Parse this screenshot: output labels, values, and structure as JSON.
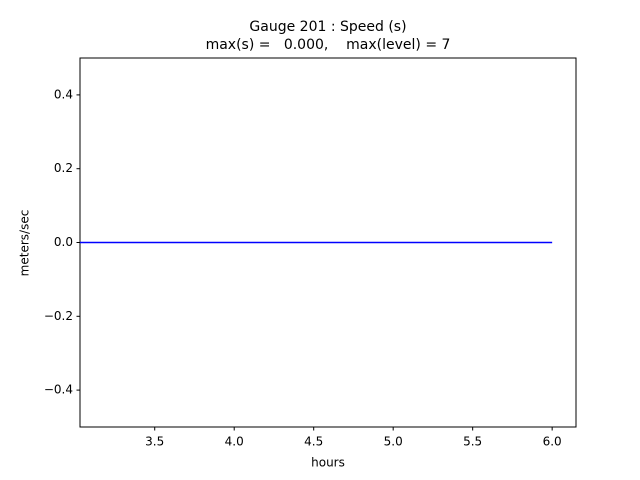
{
  "chart_data": {
    "type": "line",
    "title": "Gauge 201 : Speed (s)",
    "subtitle": "max(s) =   0.000,    max(level) = 7",
    "x_label": "hours",
    "y_label": "meters/sec",
    "x": [
      3.03,
      6.0
    ],
    "series": [
      {
        "color": "#0000ff",
        "values": [
          0,
          0
        ]
      }
    ],
    "xlim": [
      3.03,
      6.15
    ],
    "xticks": [
      3.5,
      {
        "value": 4,
        "label": "4.0"
      },
      4.5,
      {
        "value": 5,
        "label": "5.0"
      },
      5.5,
      {
        "value": 6,
        "label": "6.0"
      }
    ],
    "ylim": [
      -0.5,
      0.5
    ],
    "yticks": [
      {
        "value": -0.4,
        "label": "−0.4"
      },
      {
        "value": -0.2,
        "label": "−0.2"
      },
      {
        "value": 0,
        "label": "0.0"
      },
      0.2,
      0.4
    ],
    "grid": false
  }
}
